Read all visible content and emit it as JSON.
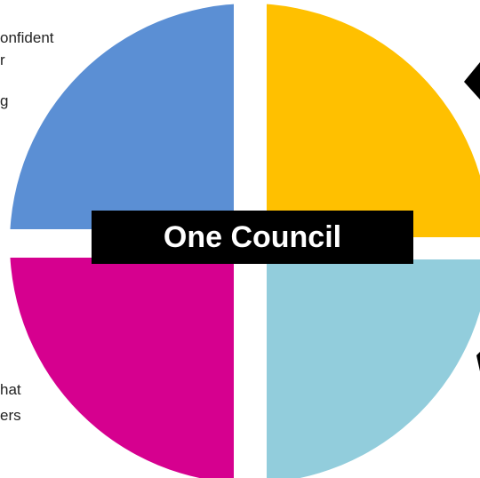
{
  "diagram": {
    "center_label": "One Council",
    "quadrants": [
      {
        "position": "top-left",
        "color": "#5B8FD4"
      },
      {
        "position": "top-right",
        "color": "#FFC000"
      },
      {
        "position": "bottom-left",
        "color": "#D6008F"
      },
      {
        "position": "bottom-right",
        "color": "#92CDDC"
      }
    ],
    "text_fragments": [
      "onfident",
      "r",
      "g",
      "hat",
      "ers"
    ],
    "background": "#FFFFFF"
  }
}
